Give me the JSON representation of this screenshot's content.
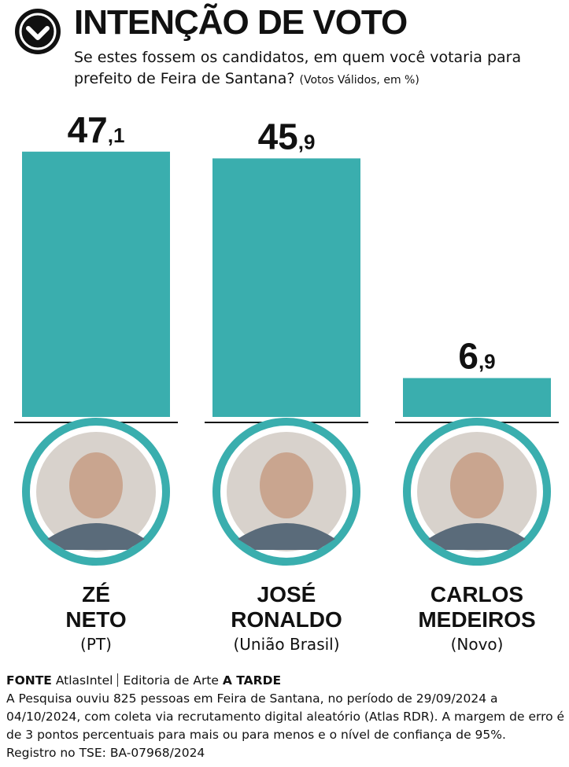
{
  "chart_data": {
    "type": "bar",
    "title": "INTENÇÃO DE VOTO",
    "subtitle": "Se estes fossem os candidatos, em quem você votaria para prefeito de Feira de Santana?",
    "note": "(Votos Válidos, em %)",
    "categories": [
      "ZÉ NETO",
      "JOSÉ RONALDO",
      "CARLOS MEDEIROS"
    ],
    "parties": [
      "(PT)",
      "(União Brasil)",
      "(Novo)"
    ],
    "values": [
      47.1,
      45.9,
      6.9
    ],
    "value_labels": [
      "47,1",
      "45,9",
      "6,9"
    ],
    "color": "#3aaeae",
    "ylim": [
      0,
      50
    ],
    "source_label": "FONTE",
    "source": "AtlasIntel",
    "credit": "Editoria de Arte",
    "credit_outlet": "A TARDE",
    "methodology": "A Pesquisa ouviu 825 pessoas em Feira de Santana, no período de 29/09/2024 a 04/10/2024, com coleta via recrutamento digital aleatório (Atlas RDR). A margem de erro é de 3 pontos percentuais para mais ou para menos e o nível de confiança de 95%.",
    "registration": "Registro no TSE: BA-07968/2024"
  }
}
